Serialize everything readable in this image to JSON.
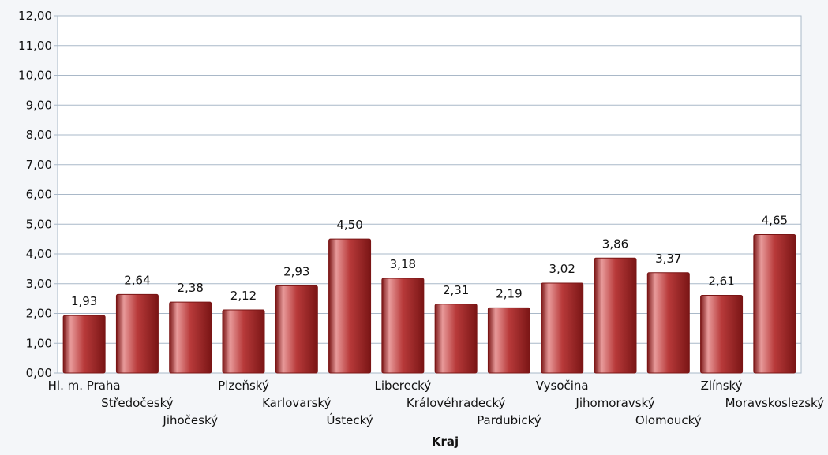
{
  "chart_data": {
    "type": "bar",
    "categories": [
      "Hl. m. Praha",
      "Středočeský",
      "Jihočeský",
      "Plzeňský",
      "Karlovarský",
      "Ústecký",
      "Liberecký",
      "Královéhradecký",
      "Pardubický",
      "Vysočina",
      "Jihomoravský",
      "Olomoucký",
      "Zlínský",
      "Moravskoslezský"
    ],
    "values": [
      1.93,
      2.64,
      2.38,
      2.12,
      2.93,
      4.5,
      3.18,
      2.31,
      2.19,
      3.02,
      3.86,
      3.37,
      2.61,
      4.65
    ],
    "value_labels": [
      "1,93",
      "2,64",
      "2,38",
      "2,12",
      "2,93",
      "4,50",
      "3,18",
      "2,31",
      "2,19",
      "3,02",
      "3,86",
      "3,37",
      "2,61",
      "4,65"
    ],
    "title": "",
    "xlabel": "Kraj",
    "ylabel": "",
    "ylim": [
      0,
      12
    ],
    "y_ticks": [
      0,
      1,
      2,
      3,
      4,
      5,
      6,
      7,
      8,
      9,
      10,
      11,
      12
    ],
    "y_tick_labels": [
      "0,00",
      "1,00",
      "2,00",
      "3,00",
      "4,00",
      "5,00",
      "6,00",
      "7,00",
      "8,00",
      "9,00",
      "10,00",
      "11,00",
      "12,00"
    ],
    "grid": true,
    "legend": "none",
    "colors": {
      "bar": "#b83a3a",
      "bar_dark": "#7a1515",
      "bar_light": "#e89a9a",
      "plot_background": "#ffffff",
      "page_background": "#f4f6f9",
      "gridline": "#a9b8c8"
    }
  }
}
